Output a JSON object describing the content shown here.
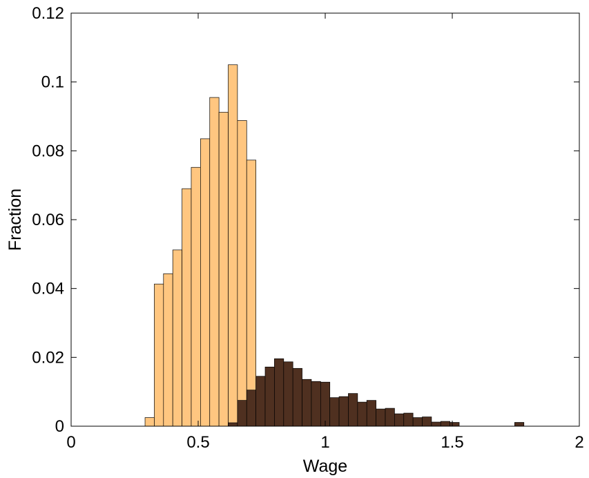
{
  "chart_data": {
    "type": "bar",
    "title": "",
    "xlabel": "Wage",
    "ylabel": "Fraction",
    "xlim": [
      0,
      2
    ],
    "ylim": [
      0,
      0.12
    ],
    "xticks": [
      {
        "value": 0,
        "label": "0"
      },
      {
        "value": 0.5,
        "label": "0.5"
      },
      {
        "value": 1,
        "label": "1"
      },
      {
        "value": 1.5,
        "label": "1.5"
      },
      {
        "value": 2,
        "label": "2"
      }
    ],
    "yticks": [
      {
        "value": 0,
        "label": "0"
      },
      {
        "value": 0.02,
        "label": "0.02"
      },
      {
        "value": 0.04,
        "label": "0.04"
      },
      {
        "value": 0.06,
        "label": "0.06"
      },
      {
        "value": 0.08,
        "label": "0.08"
      },
      {
        "value": 0.1,
        "label": "0.1"
      },
      {
        "value": 0.12,
        "label": "0.12"
      }
    ],
    "grid": false,
    "bin_width": 0.0364,
    "series": [
      {
        "color": "#ffc680",
        "bin_starts": [
          0.2909,
          0.3273,
          0.3636,
          0.4,
          0.4364,
          0.4727,
          0.5091,
          0.5455,
          0.5818,
          0.6182,
          0.6545,
          0.6909,
          0.7273,
          0.7636
        ],
        "values": [
          0.0025,
          0.0413,
          0.0443,
          0.0512,
          0.069,
          0.0752,
          0.0835,
          0.0955,
          0.0912,
          0.105,
          0.0888,
          0.0773,
          0.0,
          0.0
        ]
      },
      {
        "color": "#4f3020",
        "bin_starts": [
          0.6182,
          0.6545,
          0.6909,
          0.7273,
          0.7636,
          0.8,
          0.8364,
          0.8727,
          0.9091,
          0.9455,
          0.9818,
          1.0182,
          1.0545,
          1.0909,
          1.1273,
          1.1636,
          1.2,
          1.2364,
          1.2727,
          1.3091,
          1.3455,
          1.3818,
          1.4182,
          1.4545,
          1.4909,
          1.5273,
          1.5636,
          1.6,
          1.6364,
          1.6727,
          1.7091,
          1.7455
        ],
        "values": [
          0.001,
          0.0075,
          0.0105,
          0.0145,
          0.0172,
          0.0196,
          0.0187,
          0.0168,
          0.0136,
          0.013,
          0.0128,
          0.0083,
          0.0086,
          0.0095,
          0.007,
          0.0075,
          0.005,
          0.0052,
          0.0036,
          0.0038,
          0.0025,
          0.0027,
          0.0012,
          0.0014,
          0.0011,
          0.0,
          0.0,
          0.0,
          0.0,
          0.0,
          0.0,
          0.0011
        ]
      }
    ]
  }
}
